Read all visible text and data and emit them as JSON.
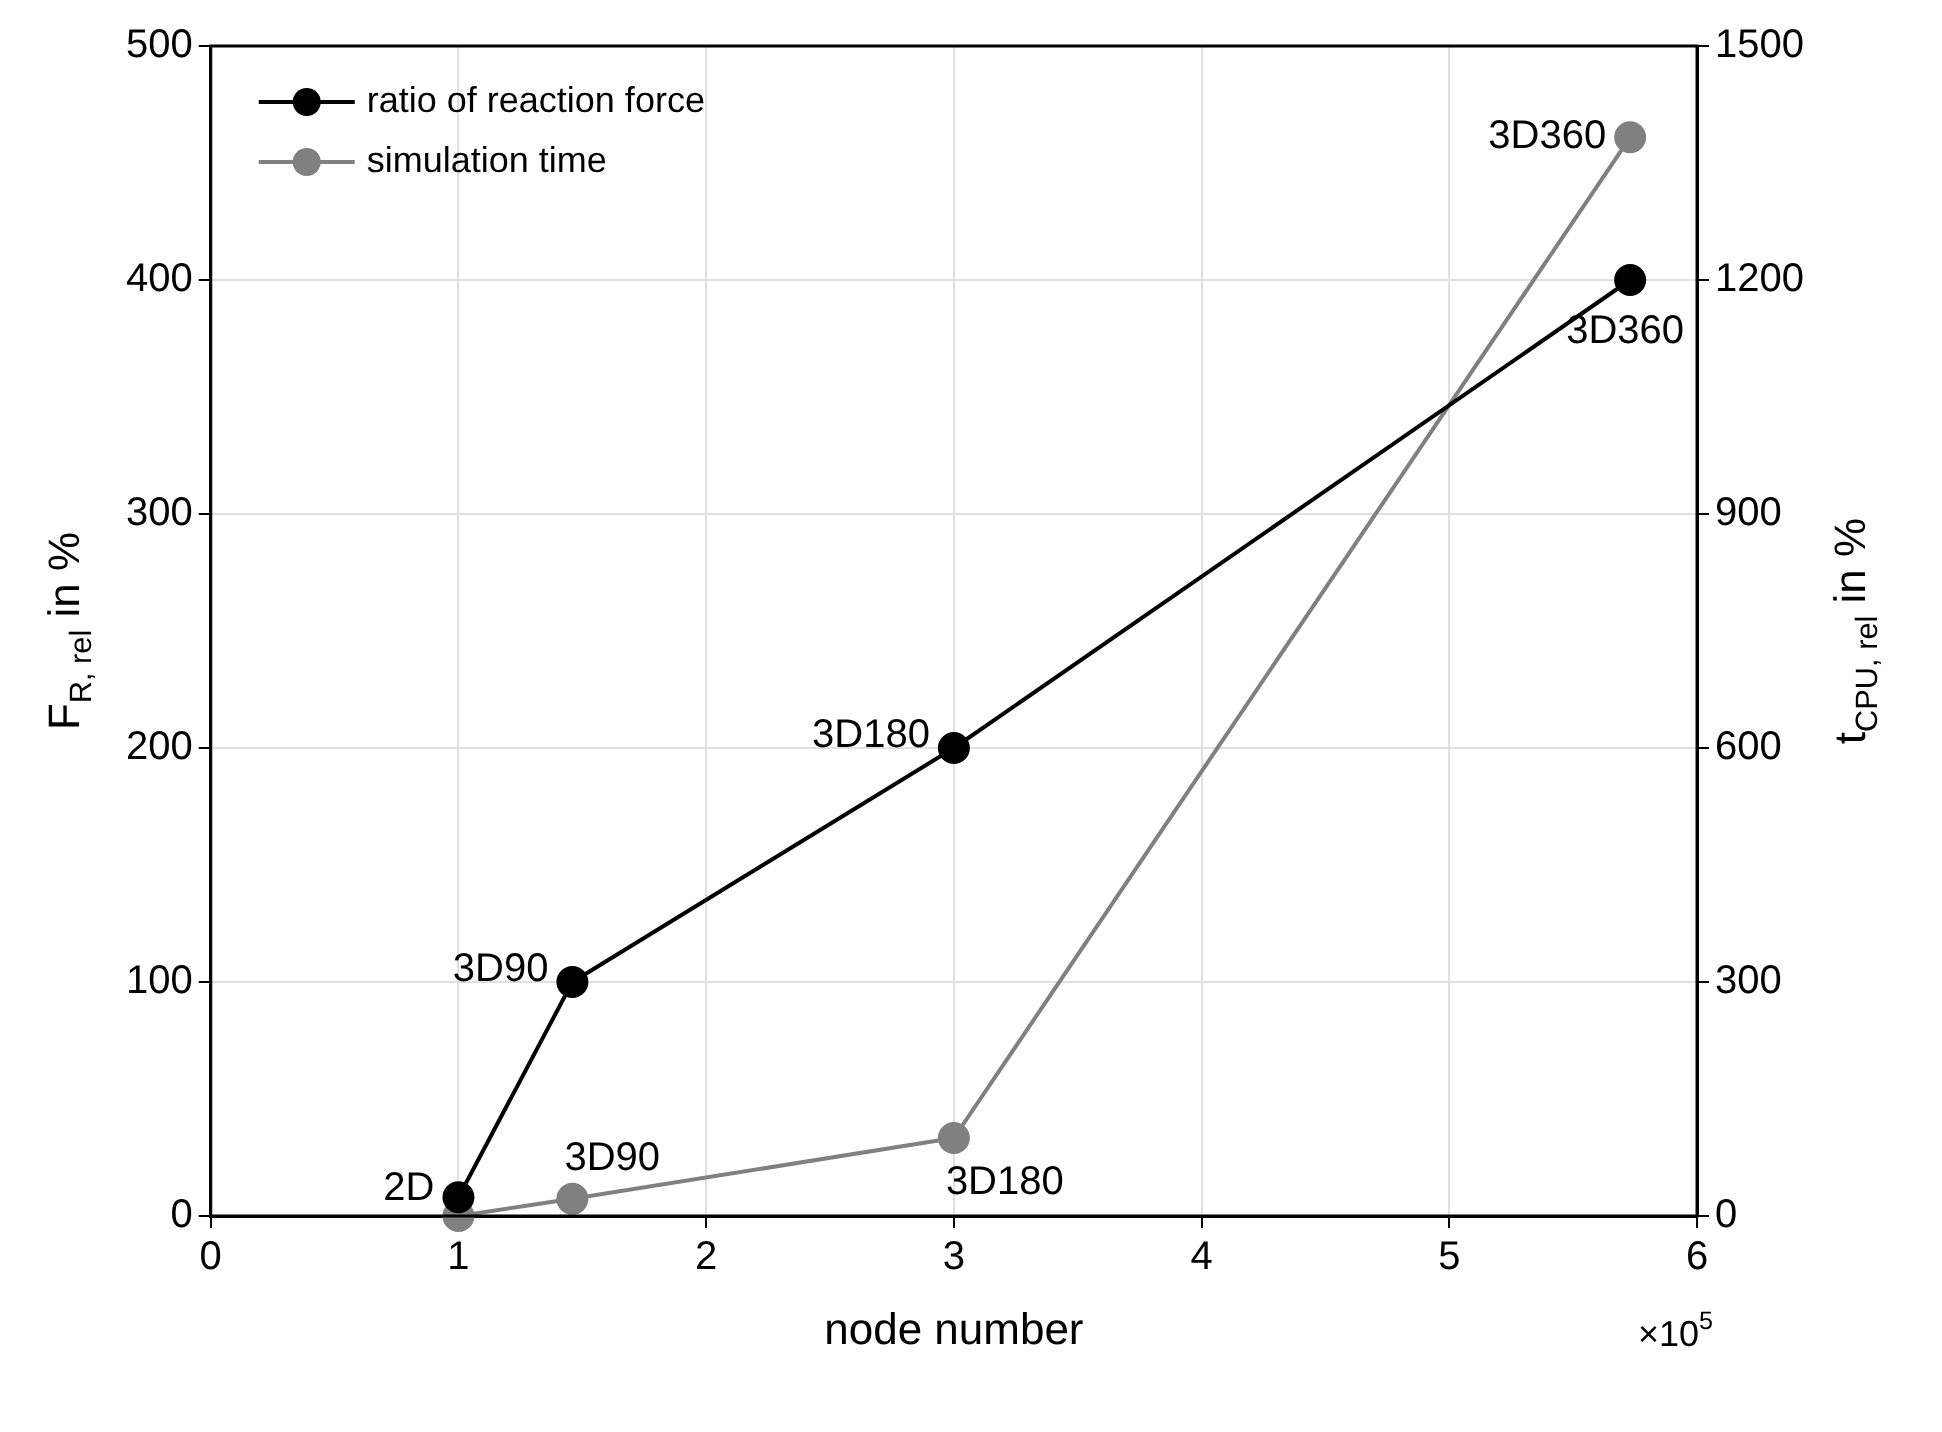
{
  "chart_data": {
    "type": "line",
    "xlabel": "node number",
    "ylabel": "F$_{R, rel}$ in %",
    "y2label": "t$_{CPU, rel}$ in %",
    "x": [
      1,
      1.46,
      3,
      5.73
    ],
    "series": [
      {
        "name": "ratio of reaction force",
        "color": "#000000",
        "values": [
          8,
          100,
          200,
          400
        ]
      },
      {
        "name": "simulation time",
        "color": "#808080",
        "values": [
          0,
          22,
          100,
          1383
        ],
        "axis": "y2"
      }
    ],
    "xlim": [
      0,
      6
    ],
    "xticks": [
      0,
      1,
      2,
      3,
      4,
      5,
      6
    ],
    "ylim": [
      0,
      500
    ],
    "yticks": [
      0,
      100,
      200,
      300,
      400,
      500
    ],
    "y2lim": [
      0,
      1500
    ],
    "y2ticks": [
      0,
      300,
      600,
      900,
      1200,
      1500
    ],
    "annotations": [
      {
        "text": "2D",
        "x": 1,
        "y": 8
      },
      {
        "text": "3D90",
        "x": 1.46,
        "y": 100
      },
      {
        "text": "3D180",
        "x": 3,
        "y": 200
      },
      {
        "text": "3D360",
        "x": 5.73,
        "y": 400
      },
      {
        "text": "3D90",
        "x": 1.46,
        "y": 7.3
      },
      {
        "text": "3D180",
        "x": 3,
        "y": 33
      },
      {
        "text": "3D360",
        "x": 5.73,
        "y": 461
      },
      "×10$^{5}$"
    ],
    "grid": true,
    "legend": "top left",
    "marker": "circle",
    "line_style": "solid"
  }
}
